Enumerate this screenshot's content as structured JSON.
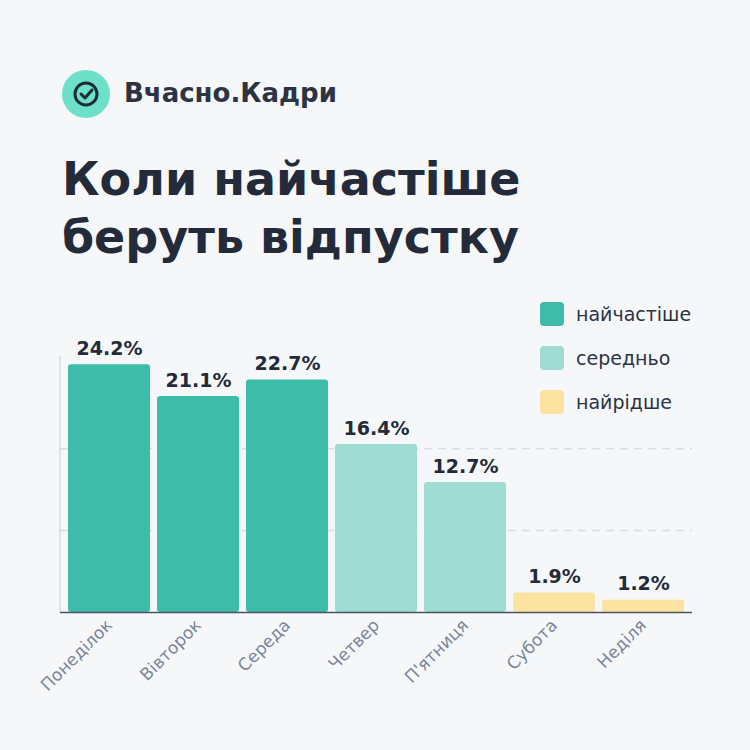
{
  "header": {
    "brand": "Вчасно.Кадри"
  },
  "chart_data": {
    "type": "bar",
    "title": "Коли найчастіше беруть відпустку",
    "categories": [
      "Понеділок",
      "Вівторок",
      "Середа",
      "Четвер",
      "П'ятниця",
      "Субота",
      "Неділя"
    ],
    "values": [
      24.2,
      21.1,
      22.7,
      16.4,
      12.7,
      1.9,
      1.2
    ],
    "value_labels": [
      "24.2%",
      "21.1%",
      "22.7%",
      "16.4%",
      "12.7%",
      "1.9%",
      "1.2%"
    ],
    "colors": [
      "#3dbda9",
      "#3dbda9",
      "#3dbda9",
      "#9fddd2",
      "#9fddd2",
      "#fde3a0",
      "#fde3a0"
    ],
    "groups": [
      {
        "name": "найчастіше",
        "color": "#3dbda9"
      },
      {
        "name": "середньо",
        "color": "#9fddd2"
      },
      {
        "name": "найрідше",
        "color": "#fde3a0"
      }
    ],
    "legend": "top-right",
    "ylim": [
      0,
      25
    ],
    "yticks": [
      0,
      8,
      16
    ],
    "grid": true,
    "data_labels": true,
    "tick_labels": "x"
  }
}
